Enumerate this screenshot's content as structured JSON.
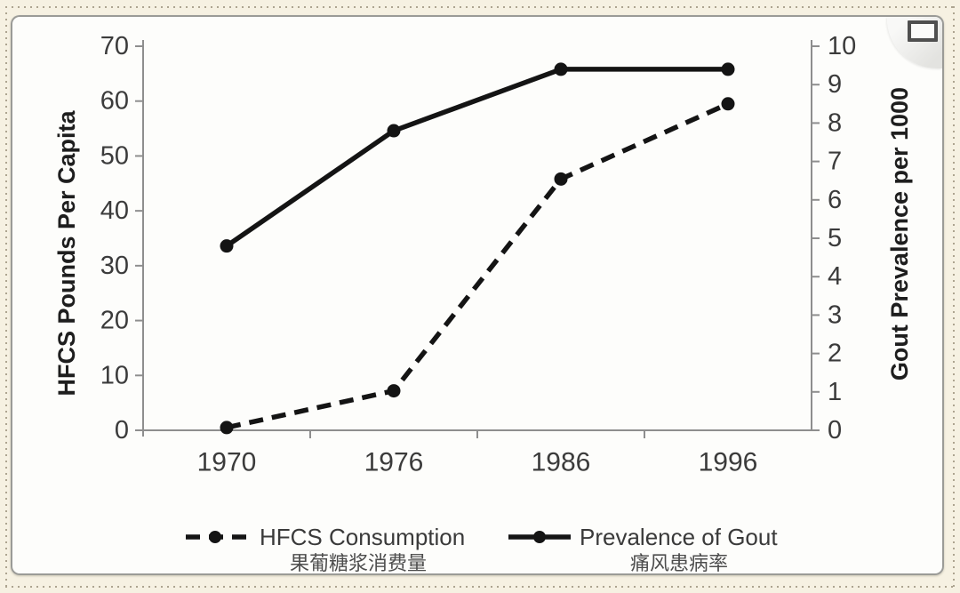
{
  "page": {
    "background_color": "#f6f1e2",
    "frame_dot_color": "#ada490",
    "corner_control": {
      "icon": "expand-rectangle"
    }
  },
  "chart_data": {
    "type": "line",
    "categories": [
      "1970",
      "1976",
      "1986",
      "1996"
    ],
    "series": [
      {
        "name": "HFCS Consumption",
        "name_zh": "果葡糖浆消费量",
        "axis": "left",
        "line_style": "dashed",
        "marker": "circle",
        "values": [
          0.5,
          7.2,
          45.8,
          59.5
        ]
      },
      {
        "name": "Prevalence of Gout",
        "name_zh": "痛风患病率",
        "axis": "right",
        "line_style": "solid",
        "marker": "circle",
        "values": [
          4.8,
          7.8,
          9.4,
          9.4
        ]
      }
    ],
    "left_axis": {
      "label": "HFCS Pounds Per Capita",
      "min": 0,
      "max": 70,
      "ticks": [
        0,
        10,
        20,
        30,
        40,
        50,
        60,
        70
      ]
    },
    "right_axis": {
      "label": "Gout Prevalence per 1000",
      "min": 0,
      "max": 10,
      "ticks": [
        0,
        1,
        2,
        3,
        4,
        5,
        6,
        7,
        8,
        9,
        10
      ]
    },
    "x_axis": {
      "boundary_ticks": true
    },
    "grid": false,
    "legend_position": "bottom",
    "colors": {
      "series_ink": "#141414",
      "axis_line": "#8e8e8e",
      "tick_label": "#3b3b3b",
      "axis_title": "#1e1e1e",
      "legend_label": "#3a3a3a",
      "legend_label_zh": "#4d4d4d",
      "panel_bg": "#fdfdfb",
      "panel_border": "#9b9b97"
    }
  }
}
